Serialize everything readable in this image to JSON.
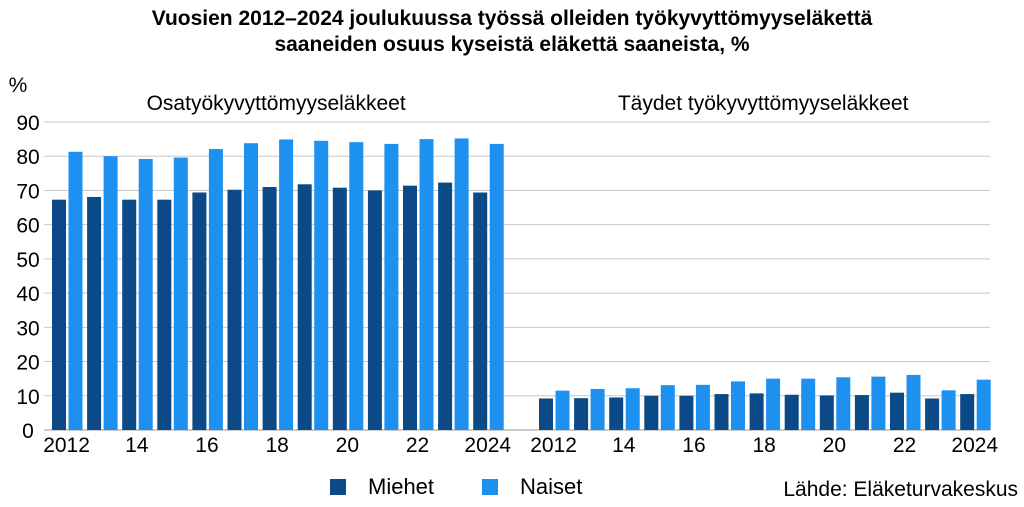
{
  "title_line1": "Vuosien 2012–2024 joulukuussa työssä olleiden työkyvyttömyyseläkettä",
  "title_line2": "saaneiden osuus kyseistä eläkettä saaneista, %",
  "source": "Lähde: Eläketurvakeskus",
  "colors": {
    "miehet": "#0B4A86",
    "naiset": "#1E90F0",
    "grid": "#C8C8C8"
  },
  "chart_data": {
    "type": "bar",
    "ylabel": "%",
    "ylim": [
      0,
      90
    ],
    "yticks": [
      0,
      10,
      20,
      30,
      40,
      50,
      60,
      70,
      80,
      90
    ],
    "years": [
      2012,
      2013,
      2014,
      2015,
      2016,
      2017,
      2018,
      2019,
      2020,
      2021,
      2022,
      2023,
      2024
    ],
    "xtick_labels": [
      "2012",
      "14",
      "16",
      "18",
      "20",
      "22",
      "2024"
    ],
    "legend": [
      "Miehet",
      "Naiset"
    ],
    "panels": [
      {
        "label": "Osatyökyvyttömyyseläkkeet",
        "series": [
          {
            "name": "Miehet",
            "values": [
              67.3,
              68.1,
              67.3,
              67.3,
              69.4,
              70.2,
              71.0,
              71.8,
              70.8,
              70.0,
              71.4,
              72.3,
              69.4
            ]
          },
          {
            "name": "Naiset",
            "values": [
              81.3,
              80.0,
              79.2,
              79.6,
              82.1,
              83.8,
              84.9,
              84.5,
              84.1,
              83.6,
              85.0,
              85.2,
              83.6
            ]
          }
        ]
      },
      {
        "label": "Täydet työkyvyttömyyseläkkeet",
        "series": [
          {
            "name": "Miehet",
            "values": [
              9.2,
              9.3,
              9.5,
              10.0,
              10.0,
              10.5,
              10.7,
              10.3,
              10.1,
              10.2,
              10.9,
              9.2,
              10.5
            ]
          },
          {
            "name": "Naiset",
            "values": [
              11.5,
              12.0,
              12.2,
              13.1,
              13.2,
              14.2,
              15.0,
              15.0,
              15.4,
              15.6,
              16.1,
              11.6,
              14.7
            ]
          }
        ]
      }
    ]
  }
}
